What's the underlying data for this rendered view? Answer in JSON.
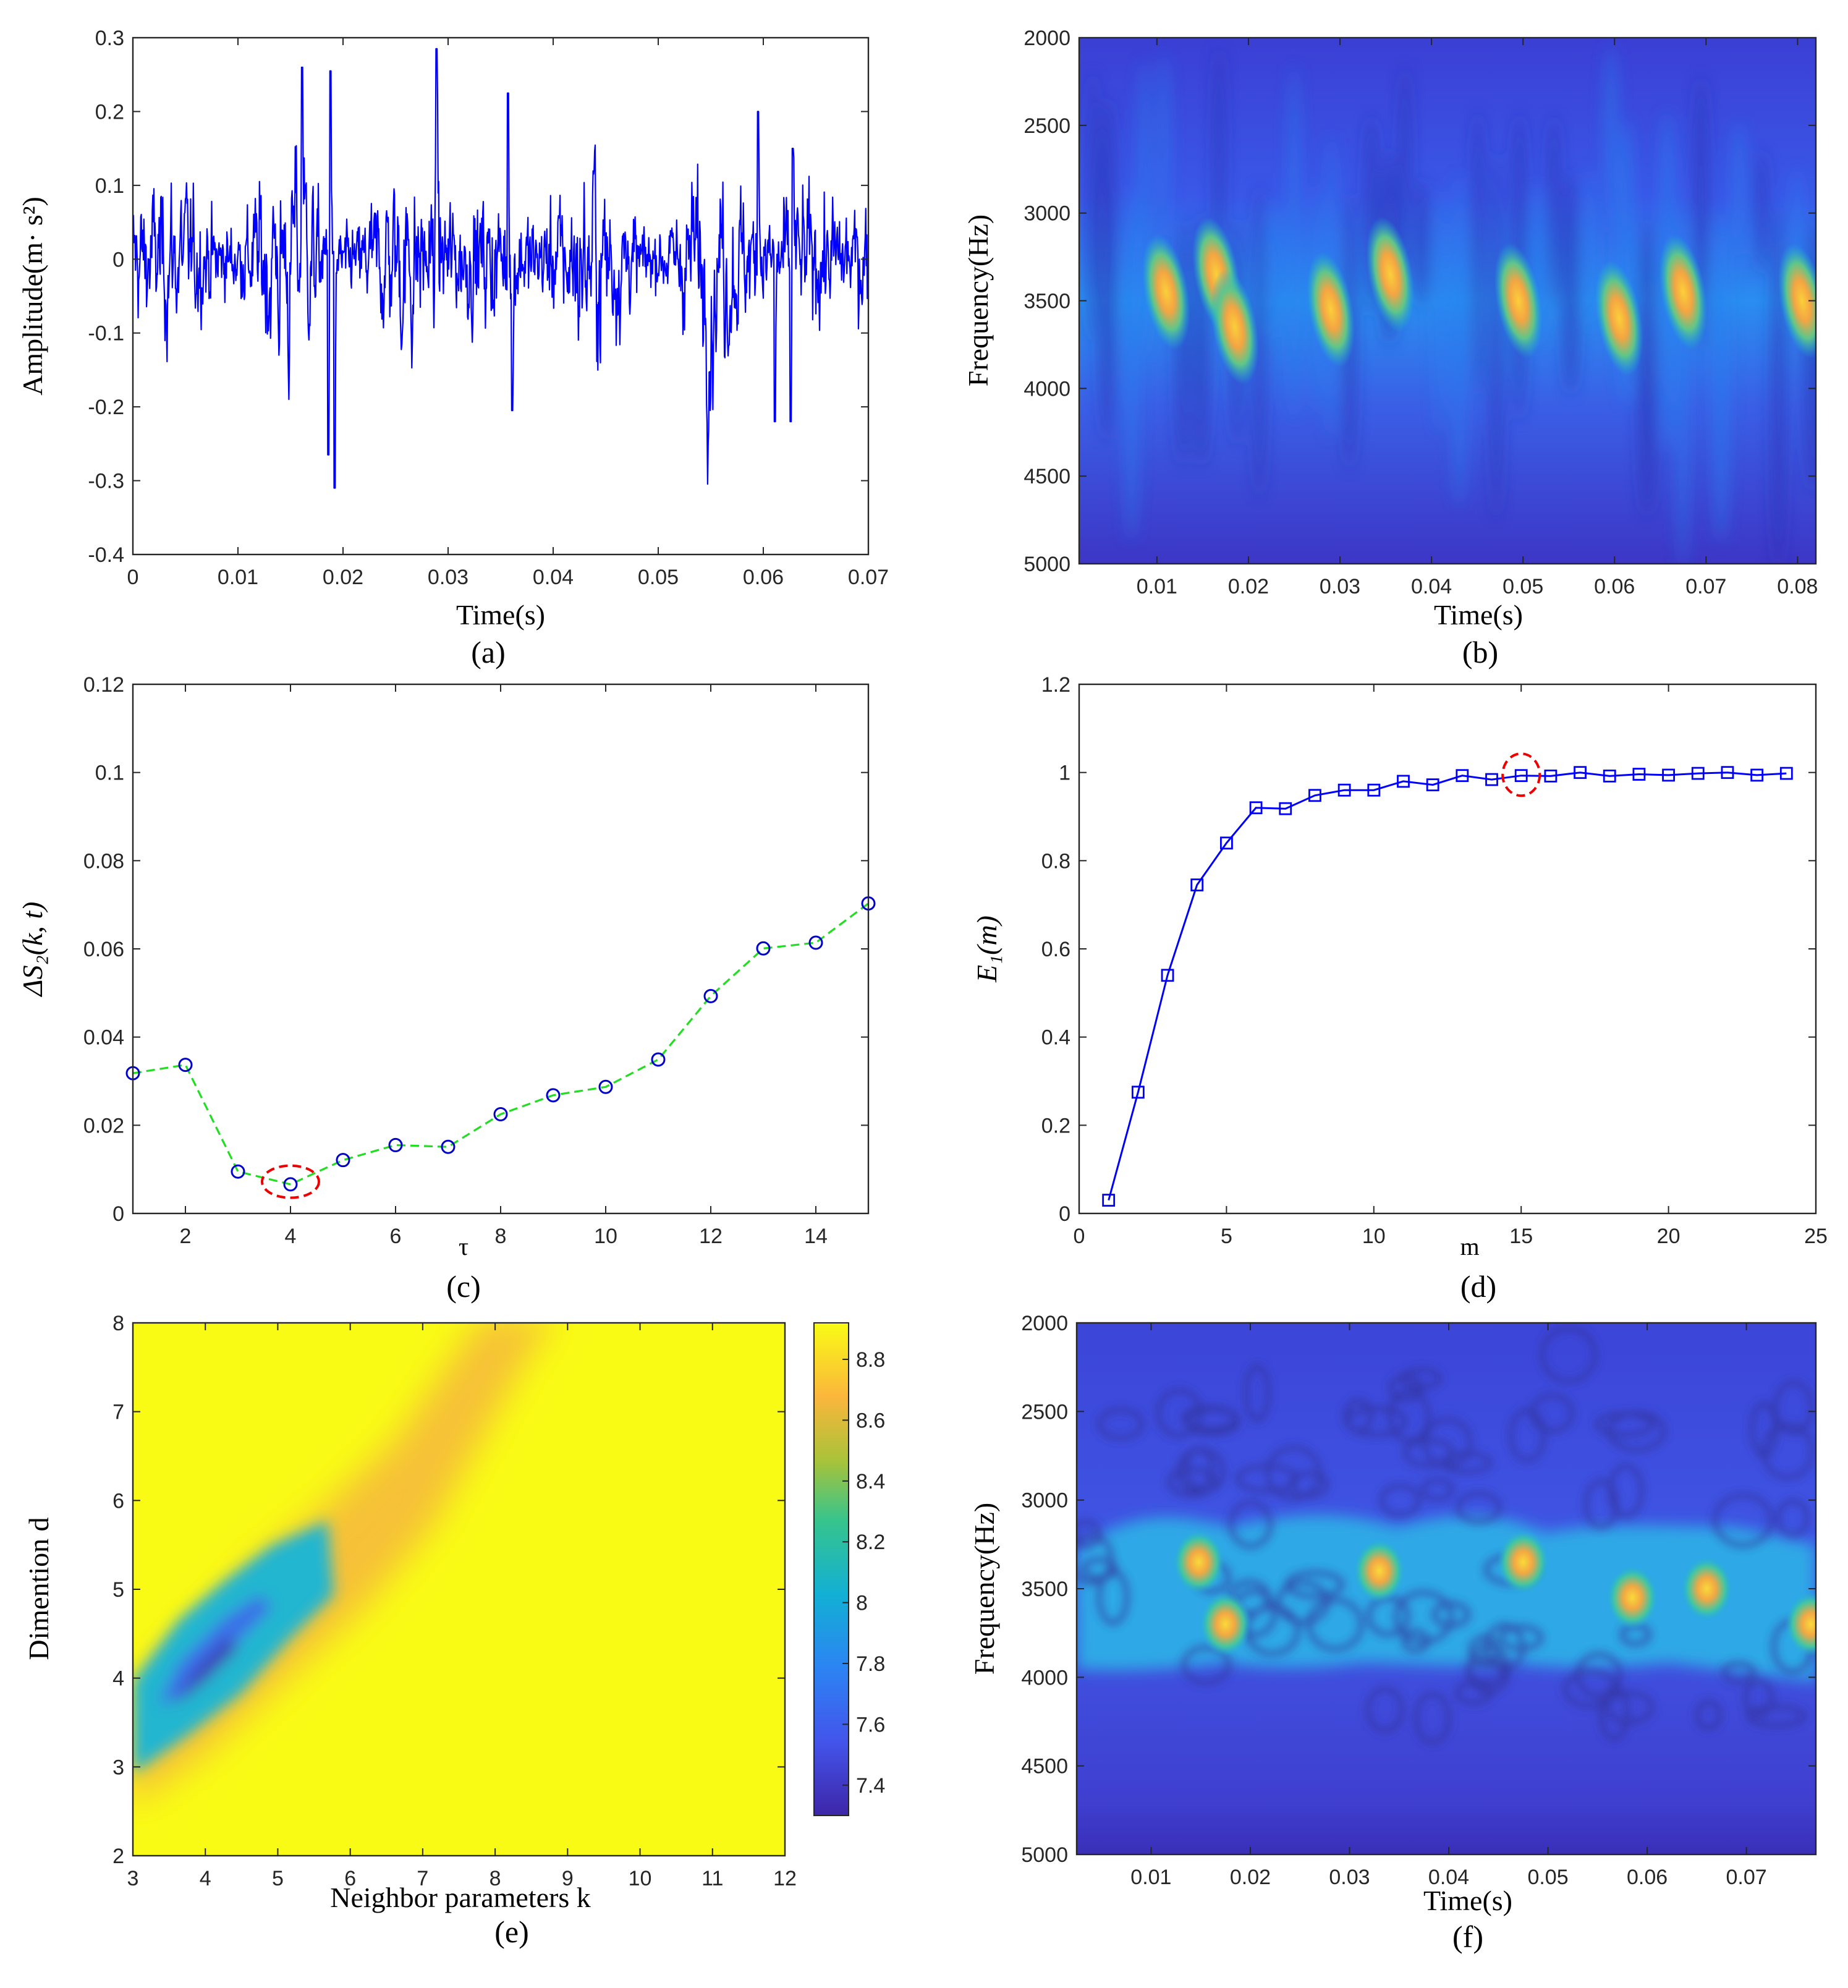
{
  "chart_data": [
    {
      "id": "a",
      "type": "line",
      "caption": "(a)",
      "xlabel": "Time(s)",
      "ylabel": "Amplitude(m· s²)",
      "xlim": [
        0,
        0.07
      ],
      "ylim": [
        -0.4,
        0.3
      ],
      "xticks": [
        "0",
        "0.01",
        "0.02",
        "0.03",
        "0.04",
        "0.05",
        "0.06",
        "0.07"
      ],
      "yticks": [
        "0.3",
        "0.2",
        "0.1",
        "0",
        "-0.1",
        "-0.2",
        "-0.3",
        "-0.4"
      ],
      "series": [
        {
          "name": "vibration signal",
          "color": "#0000ff",
          "description": "dense noisy vibration waveform, ~1400 samples, mostly within ±0.12",
          "peaks": [
            [
              0.0161,
              0.26
            ],
            [
              0.0188,
              0.255
            ],
            [
              0.0289,
              0.285
            ],
            [
              0.0357,
              0.225
            ],
            [
              0.0595,
              0.2
            ],
            [
              0.0628,
              0.15
            ],
            [
              0.0186,
              -0.265
            ],
            [
              0.0192,
              -0.31
            ],
            [
              0.0361,
              -0.205
            ],
            [
              0.0611,
              -0.22
            ],
            [
              0.0626,
              -0.22
            ]
          ]
        }
      ]
    },
    {
      "id": "b",
      "type": "heatmap",
      "caption": "(b)",
      "xlabel": "Time(s)",
      "ylabel": "Frequency(Hz)",
      "xlim": [
        0.0015,
        0.082
      ],
      "ylim": [
        2000,
        5000
      ],
      "xticks": [
        "0.01",
        "0.02",
        "0.03",
        "0.04",
        "0.05",
        "0.06",
        "0.07",
        "0.08"
      ],
      "yticks": [
        "2000",
        "2500",
        "3000",
        "3500",
        "4000",
        "4500",
        "5000"
      ],
      "hotspots": [
        [
          0.011,
          3450
        ],
        [
          0.0165,
          3350
        ],
        [
          0.0185,
          3650
        ],
        [
          0.029,
          3550
        ],
        [
          0.0355,
          3350
        ],
        [
          0.0495,
          3500
        ],
        [
          0.0605,
          3600
        ],
        [
          0.0675,
          3450
        ],
        [
          0.0805,
          3500
        ]
      ]
    },
    {
      "id": "c",
      "type": "line",
      "caption": "(c)",
      "xlabel": "τ",
      "ylabel": "ΔS₂(k, t)",
      "xlim": [
        1,
        15
      ],
      "ylim": [
        0,
        0.12
      ],
      "xticks": [
        "2",
        "4",
        "6",
        "8",
        "10",
        "12",
        "14"
      ],
      "yticks": [
        "0.12",
        "0.1",
        "0.08",
        "0.06",
        "0.04",
        "0.02",
        "0"
      ],
      "series": [
        {
          "name": "ΔS2",
          "x": [
            1,
            2,
            3,
            4,
            5,
            6,
            7,
            8,
            9,
            10,
            11,
            12,
            13,
            14,
            15
          ],
          "values": [
            0.0318,
            0.0337,
            0.0095,
            0.0066,
            0.0121,
            0.0155,
            0.0151,
            0.0225,
            0.0268,
            0.0287,
            0.0349,
            0.0493,
            0.0601,
            0.0614,
            0.0703
          ],
          "line_color": "#22dd22",
          "marker_color": "#0000cc"
        }
      ],
      "highlight": {
        "x": 4,
        "y": 0.0072,
        "color": "#ee0000"
      }
    },
    {
      "id": "d",
      "type": "line",
      "caption": "(d)",
      "xlabel": "m",
      "ylabel": "E₁(m)",
      "xlim": [
        0,
        25
      ],
      "ylim": [
        0,
        1.2
      ],
      "xticks": [
        "0",
        "5",
        "10",
        "15",
        "20",
        "25"
      ],
      "yticks": [
        "1.2",
        "1",
        "0.8",
        "0.6",
        "0.4",
        "0.2",
        "0"
      ],
      "series": [
        {
          "name": "E1",
          "x": [
            1,
            2,
            3,
            4,
            5,
            6,
            7,
            8,
            9,
            10,
            11,
            12,
            13,
            14,
            15,
            16,
            17,
            18,
            19,
            20,
            21,
            22,
            23,
            24
          ],
          "values": [
            0.03,
            0.275,
            0.54,
            0.745,
            0.84,
            0.92,
            0.918,
            0.948,
            0.96,
            0.96,
            0.98,
            0.972,
            0.993,
            0.984,
            0.993,
            0.992,
            1.0,
            0.992,
            0.996,
            0.994,
            0.998,
            1.0,
            0.994,
            0.998
          ],
          "color": "#0000ff"
        }
      ],
      "highlight": {
        "x": 15,
        "y": 0.995,
        "color": "#ee0000"
      }
    },
    {
      "id": "e",
      "type": "heatmap",
      "caption": "(e)",
      "xlabel": "Neighbor parameters k",
      "ylabel": "Dimention d",
      "xlim": [
        3,
        12
      ],
      "ylim": [
        2,
        8
      ],
      "xticks": [
        "3",
        "4",
        "5",
        "6",
        "7",
        "8",
        "9",
        "10",
        "11",
        "12"
      ],
      "yticks": [
        "8",
        "7",
        "6",
        "5",
        "4",
        "3",
        "2"
      ],
      "colorbar": {
        "range": [
          7.3,
          8.92
        ],
        "ticks": [
          "8.8",
          "8.6",
          "8.4",
          "8.2",
          "8",
          "7.8",
          "7.6",
          "7.4"
        ]
      },
      "minimum": {
        "k": 4,
        "d": 4,
        "value": 7.32
      }
    },
    {
      "id": "f",
      "type": "heatmap",
      "caption": "(f)",
      "xlabel": "Time(s)",
      "ylabel": "Frequency(Hz)",
      "xlim": [
        0.0025,
        0.077
      ],
      "ylim": [
        2000,
        5000
      ],
      "xticks": [
        "0.01",
        "0.02",
        "0.03",
        "0.04",
        "0.05",
        "0.06",
        "0.07"
      ],
      "yticks": [
        "2000",
        "2500",
        "3000",
        "3500",
        "4000",
        "4500",
        "5000"
      ],
      "hotspots": [
        [
          0.0148,
          3350
        ],
        [
          0.0175,
          3700
        ],
        [
          0.033,
          3400
        ],
        [
          0.0475,
          3350
        ],
        [
          0.0585,
          3550
        ],
        [
          0.066,
          3500
        ],
        [
          0.0765,
          3700
        ]
      ]
    }
  ]
}
